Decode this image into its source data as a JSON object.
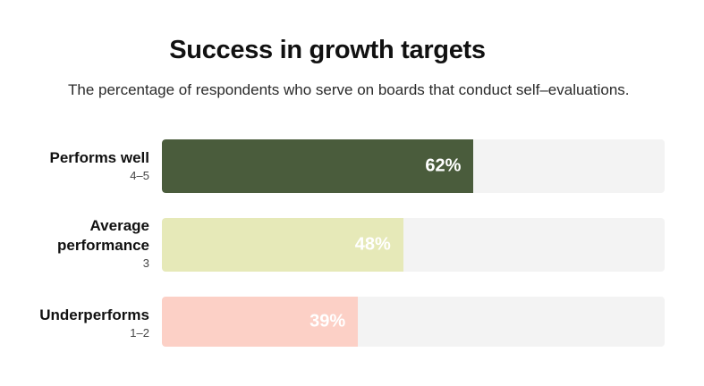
{
  "chart_data": {
    "type": "bar",
    "orientation": "horizontal",
    "title": "Success in growth targets",
    "subtitle": "The percentage of respondents who serve on boards that conduct self–evaluations.",
    "categories": [
      "Performs well",
      "Average performance",
      "Underperforms"
    ],
    "category_subtitles": [
      "4–5",
      "3",
      "1–2"
    ],
    "values": [
      62,
      48,
      39
    ],
    "value_labels": [
      "62%",
      "48%",
      "39%"
    ],
    "xlim": [
      0,
      100
    ],
    "bar_colors": [
      "#4a5c3c",
      "#e6e9b8",
      "#fcd0c6"
    ],
    "track_color": "#f3f3f3",
    "label_color": "#ffffff"
  }
}
